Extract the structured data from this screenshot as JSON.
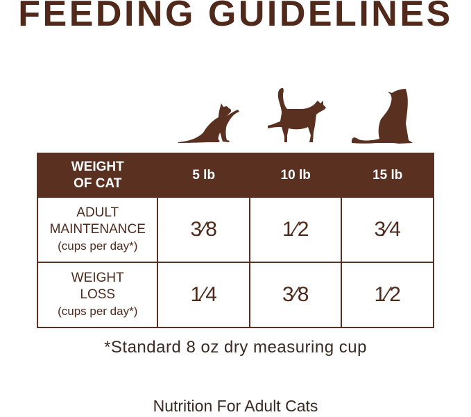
{
  "title": "FEEDING GUIDELINES",
  "icons": [
    "cat-playing-icon",
    "cat-walking-icon",
    "cat-sitting-icon"
  ],
  "brand_color": "#5a3020",
  "table": {
    "header": {
      "label_line1": "WEIGHT",
      "label_line2": "OF CAT",
      "cols": [
        "5 lb",
        "10 lb",
        "15 lb"
      ]
    },
    "rows": [
      {
        "line1": "ADULT",
        "line2": "MAINTENANCE",
        "sub": "(cups per day*)",
        "values": [
          "3⁄8",
          "1⁄2",
          "3⁄4"
        ]
      },
      {
        "line1": "WEIGHT",
        "line2": "LOSS",
        "sub": "(cups per day*)",
        "values": [
          "1⁄4",
          "3⁄8",
          "1⁄2"
        ]
      }
    ]
  },
  "footnote": "*Standard 8 oz dry measuring cup",
  "caption": "Nutrition For Adult Cats"
}
